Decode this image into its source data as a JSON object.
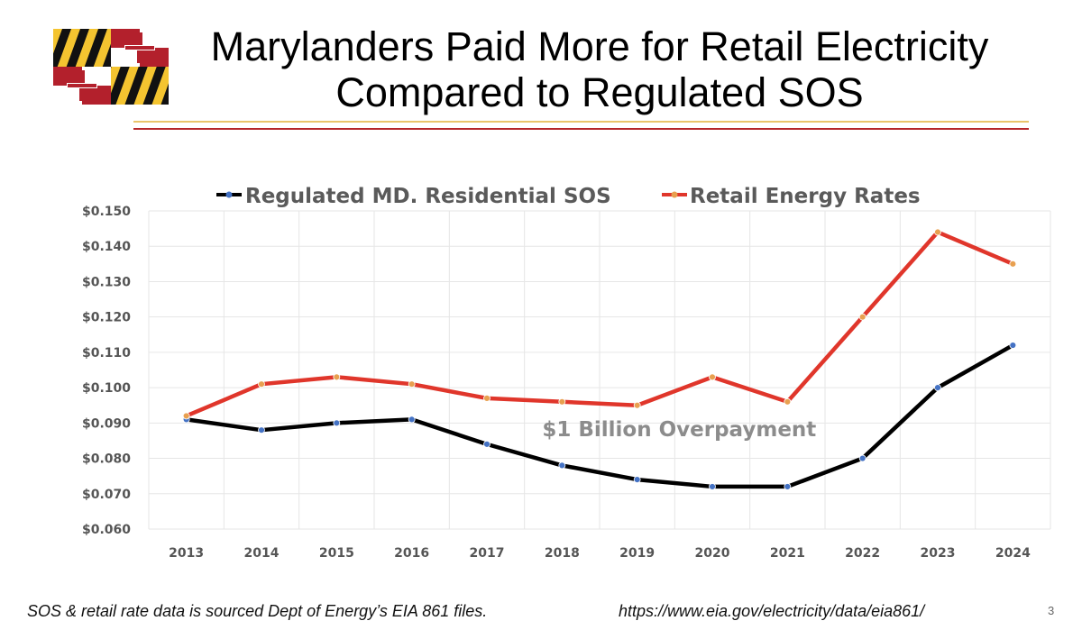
{
  "slide": {
    "title_line1": "Marylanders Paid More for Retail Electricity",
    "title_line2": "Compared to Regulated SOS",
    "source_note": "SOS & retail rate data is sourced Dept of Energy’s EIA 861 files.",
    "source_url": "https://www.eia.gov/electricity/data/eia861/",
    "page_number": "3",
    "flag_icon": "maryland-flag-icon"
  },
  "colors": {
    "sos_line": "#000000",
    "sos_marker": "#4472c4",
    "retail_line": "#e0362b",
    "retail_marker": "#e8a050",
    "grid": "#e6e6e6",
    "rule_gold": "#e9c46a",
    "rule_red": "#b5262a"
  },
  "chart_data": {
    "type": "line",
    "title": "",
    "xlabel": "",
    "ylabel": "",
    "categories": [
      "2013",
      "2014",
      "2015",
      "2016",
      "2017",
      "2018",
      "2019",
      "2020",
      "2021",
      "2022",
      "2023",
      "2024"
    ],
    "ylim": [
      0.06,
      0.15
    ],
    "yticks": [
      0.06,
      0.07,
      0.08,
      0.09,
      0.1,
      0.11,
      0.12,
      0.13,
      0.14,
      0.15
    ],
    "ytick_labels": [
      "$0.060",
      "$0.070",
      "$0.080",
      "$0.090",
      "$0.100",
      "$0.110",
      "$0.120",
      "$0.130",
      "$0.140",
      "$0.150"
    ],
    "grid": true,
    "legend_position": "top",
    "series": [
      {
        "name": "Regulated MD. Residential SOS",
        "values": [
          0.091,
          0.088,
          0.09,
          0.091,
          0.084,
          0.078,
          0.074,
          0.072,
          0.072,
          0.08,
          0.1,
          0.112
        ]
      },
      {
        "name": "Retail Energy Rates",
        "values": [
          0.092,
          0.101,
          0.103,
          0.101,
          0.097,
          0.096,
          0.095,
          0.103,
          0.096,
          0.12,
          0.144,
          0.135
        ]
      }
    ],
    "annotations": [
      {
        "text": "$1 Billion Overpayment",
        "x_category": "2018",
        "y": 0.0875
      }
    ]
  }
}
